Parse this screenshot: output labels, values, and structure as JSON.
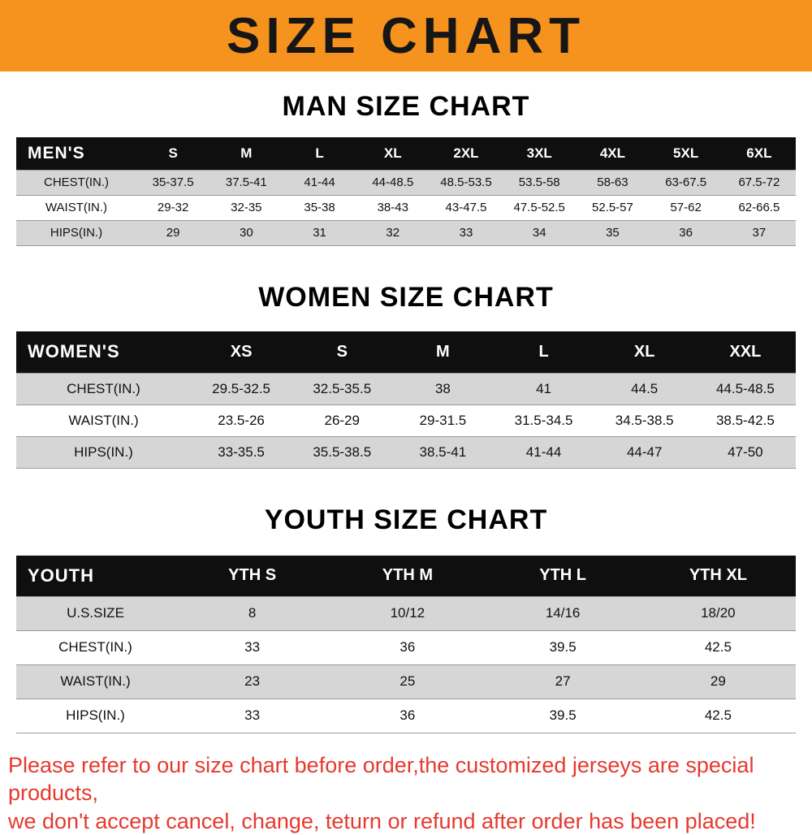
{
  "banner": {
    "title": "SIZE CHART"
  },
  "colors": {
    "banner_bg": "#F6921E",
    "table_header_bg": "#0f0f0f",
    "row_stripe": "#d6d6d6",
    "footnote_text": "#E6392E"
  },
  "sections": [
    {
      "heading": "MAN SIZE CHART",
      "table": {
        "title": "MEN'S",
        "columns": [
          "S",
          "M",
          "L",
          "XL",
          "2XL",
          "3XL",
          "4XL",
          "5XL",
          "6XL"
        ],
        "rows": [
          {
            "label": "CHEST(IN.)",
            "values": [
              "35-37.5",
              "37.5-41",
              "41-44",
              "44-48.5",
              "48.5-53.5",
              "53.5-58",
              "58-63",
              "63-67.5",
              "67.5-72"
            ]
          },
          {
            "label": "WAIST(IN.)",
            "values": [
              "29-32",
              "32-35",
              "35-38",
              "38-43",
              "43-47.5",
              "47.5-52.5",
              "52.5-57",
              "57-62",
              "62-66.5"
            ]
          },
          {
            "label": "HIPS(IN.)",
            "values": [
              "29",
              "30",
              "31",
              "32",
              "33",
              "34",
              "35",
              "36",
              "37"
            ]
          }
        ]
      }
    },
    {
      "heading": "WOMEN SIZE CHART",
      "table": {
        "title": "WOMEN'S",
        "columns": [
          "XS",
          "S",
          "M",
          "L",
          "XL",
          "XXL"
        ],
        "rows": [
          {
            "label": "CHEST(IN.)",
            "values": [
              "29.5-32.5",
              "32.5-35.5",
              "38",
              "41",
              "44.5",
              "44.5-48.5"
            ]
          },
          {
            "label": "WAIST(IN.)",
            "values": [
              "23.5-26",
              "26-29",
              "29-31.5",
              "31.5-34.5",
              "34.5-38.5",
              "38.5-42.5"
            ]
          },
          {
            "label": "HIPS(IN.)",
            "values": [
              "33-35.5",
              "35.5-38.5",
              "38.5-41",
              "41-44",
              "44-47",
              "47-50"
            ]
          }
        ]
      }
    },
    {
      "heading": "YOUTH SIZE CHART",
      "table": {
        "title": "YOUTH",
        "columns": [
          "YTH S",
          "YTH M",
          "YTH L",
          "YTH XL"
        ],
        "rows": [
          {
            "label": "U.S.SIZE",
            "values": [
              "8",
              "10/12",
              "14/16",
              "18/20"
            ]
          },
          {
            "label": "CHEST(IN.)",
            "values": [
              "33",
              "36",
              "39.5",
              "42.5"
            ]
          },
          {
            "label": "WAIST(IN.)",
            "values": [
              "23",
              "25",
              "27",
              "29"
            ]
          },
          {
            "label": "HIPS(IN.)",
            "values": [
              "33",
              "36",
              "39.5",
              "42.5"
            ]
          }
        ]
      }
    }
  ],
  "footnote": {
    "lines": [
      "Please refer to our size chart before order,the customized jerseys are special products,",
      "we don't accept cancel, change, teturn or refund after order has been placed!"
    ]
  }
}
